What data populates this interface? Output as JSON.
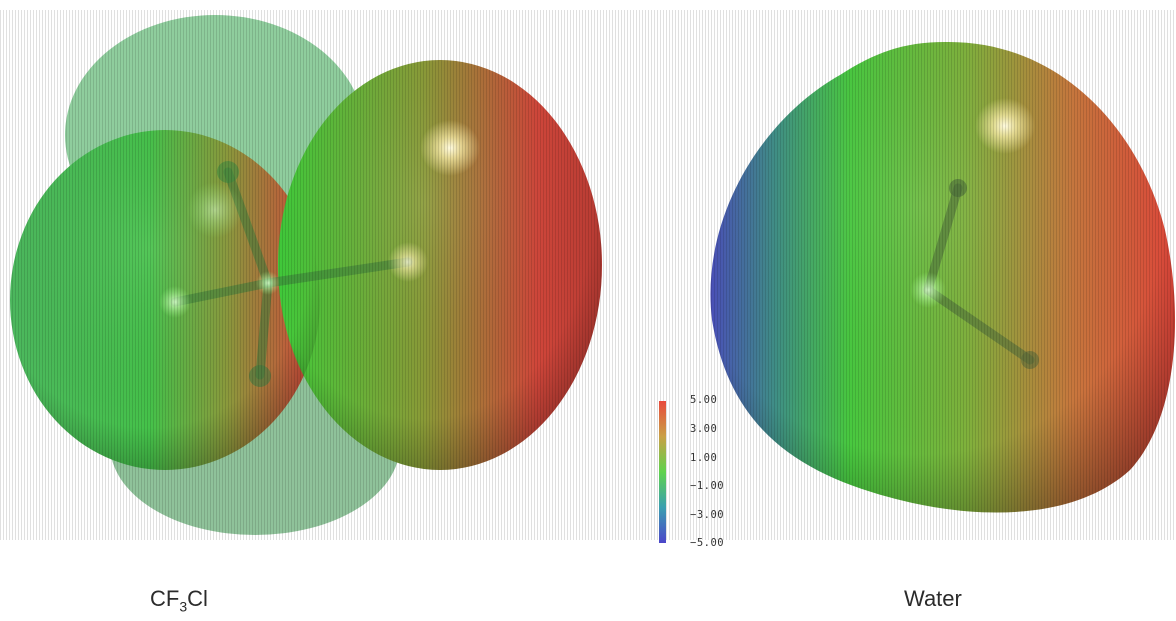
{
  "captions": {
    "left_main": "CF",
    "left_sub": "3",
    "left_tail": "Cl",
    "right": "Water"
  },
  "colorbar": {
    "ticks": [
      "5.00",
      "3.00",
      "1.00",
      "−1.00",
      "−3.00",
      "−5.00"
    ],
    "colors": [
      "#e84a3c",
      "#c9a046",
      "#5fd24d",
      "#49c97a",
      "#3d6fd0",
      "#4b45c9"
    ]
  },
  "colors": {
    "negative": "#4b4fc4",
    "neutral": "#4ccc45",
    "positive": "#e0433a"
  }
}
